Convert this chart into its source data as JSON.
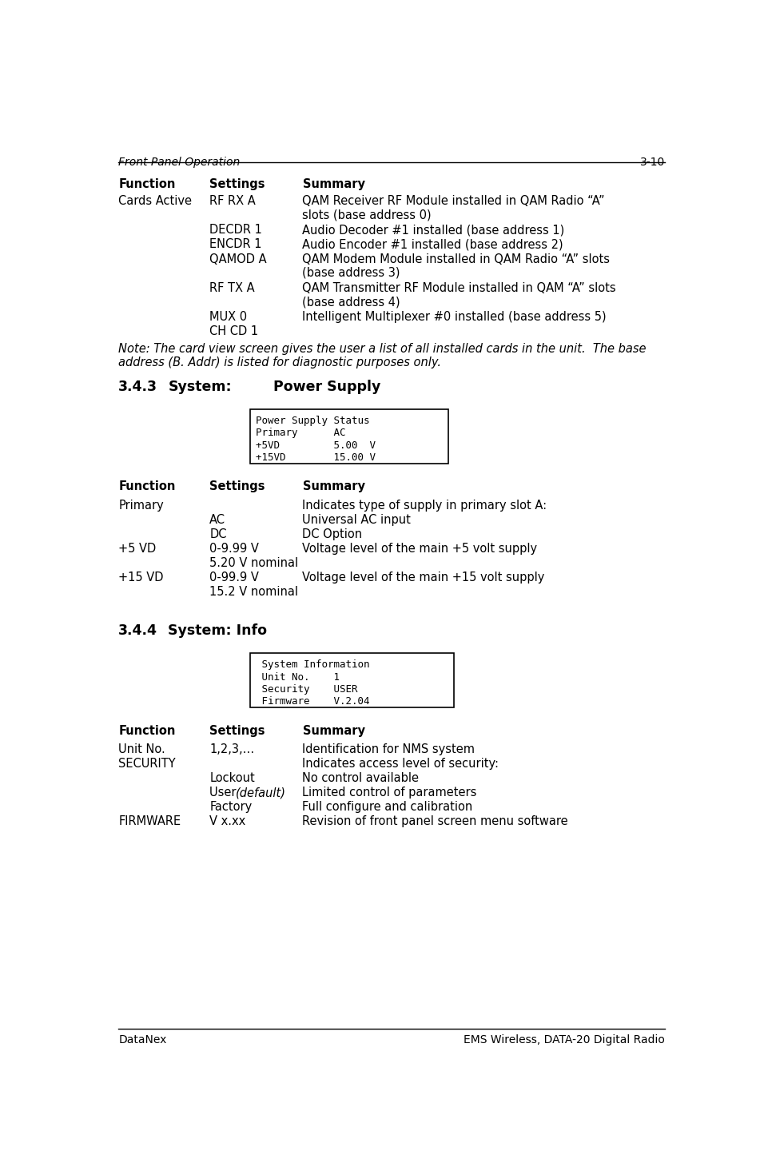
{
  "header_left": "Front Panel Operation",
  "header_right": "3-10",
  "footer_left": "DataNex",
  "footer_right_plain": "EMS Wireless, ",
  "footer_right_bold": "DATA-20",
  "footer_right_end": " Digital Radio",
  "bg_color": "#ffffff",
  "text_color": "#000000",
  "power_box_lines": [
    "Power Supply Status",
    "Primary      AC",
    "+5VD         5.00  V",
    "+15VD        15.00 V"
  ],
  "info_box_lines": [
    " System Information",
    " Unit No.    1",
    " Security    USER",
    " Firmware    V.2.04"
  ]
}
